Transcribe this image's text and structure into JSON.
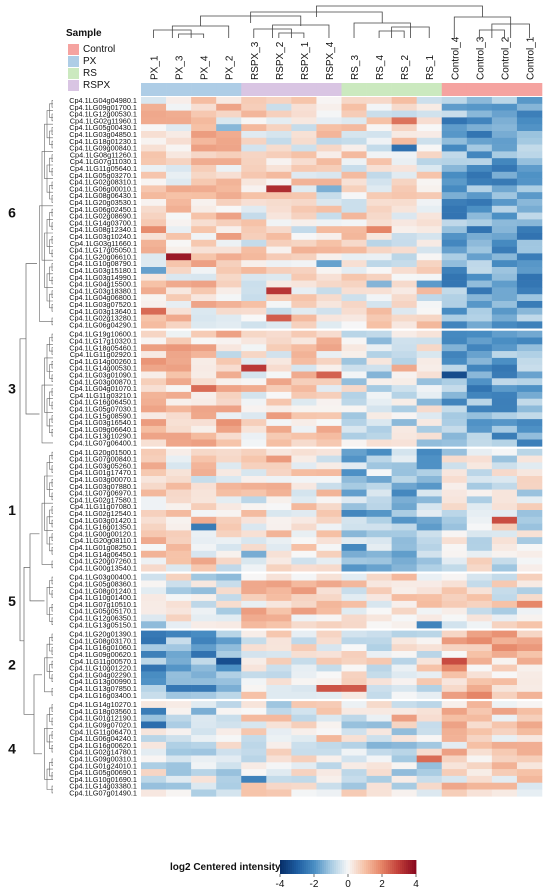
{
  "colors": {
    "Control": "#f5a3a0",
    "PX": "#aecde6",
    "RS": "#cbe9bf",
    "RSPX": "#d9c5e3"
  },
  "chart_data": {
    "type": "heatmap",
    "title": "",
    "samples": [
      "PX_1",
      "PX_3",
      "PX_4",
      "PX_2",
      "RSPX_3",
      "RSPX_2",
      "RSPX_1",
      "RSPX_4",
      "RS_3",
      "RS_4",
      "RS_2",
      "RS_1",
      "Control_4",
      "Control_3",
      "Control_2",
      "Control_1"
    ],
    "sample_groups": [
      "PX",
      "PX",
      "PX",
      "PX",
      "RSPX",
      "RSPX",
      "RSPX",
      "RSPX",
      "RS",
      "RS",
      "RS",
      "RS",
      "Control",
      "Control",
      "Control",
      "Control"
    ],
    "legend": {
      "title": "Sample",
      "entries": [
        "Control",
        "PX",
        "RS",
        "RSPX"
      ]
    },
    "colorbar": {
      "title": "log2 Centered intensity",
      "range": [
        -4,
        4
      ],
      "ticks": [
        -4,
        -2,
        0,
        2,
        4
      ],
      "low_color": "#08306b",
      "mid_color": "#f7f7f7",
      "high_color": "#8b0a1f"
    },
    "clusters": [
      {
        "label": "6",
        "genes": [
          "Cp4.1LG04g04980.1",
          "Cp4.1LG09g01700.1",
          "Cp4.1LG12g00530.1",
          "Cp4.1LG02g11960.1",
          "Cp4.1LG05g00430.1",
          "Cp4.1LG03g04850.1",
          "Cp4.1LG18g01230.1",
          "Cp4.1LG09g00840.1",
          "Cp4.1LG08g11260.1",
          "Cp4.1LG07g11030.1",
          "Cp4.1LG11g05640.1",
          "Cp4.1LG05g03270.1",
          "Cp4.1LG02g08310.1",
          "Cp4.1LG06g00010.1",
          "Cp4.1LG08g06430.1",
          "Cp4.1LG20g03530.1",
          "Cp4.1LG06g02450.1",
          "Cp4.1LG02g08690.1",
          "Cp4.1LG14g03700.1",
          "Cp4.1LG08g12340.1",
          "Cp4.1LG03g10240.1",
          "Cp4.1LG03g11660.1",
          "Cp4.1LG17g05050.1",
          "Cp4.1LG20g06610.1",
          "Cp4.1LG10g08790.1",
          "Cp4.1LG03g15180.1",
          "Cp4.1LG03g14990.1",
          "Cp4.1LG04g15500.1",
          "Cp4.1LG03g18380.1",
          "Cp4.1LG04g06800.1",
          "Cp4.1LG03g07520.1",
          "Cp4.1LG03g13640.1",
          "Cp4.1LG02g13280.1",
          "Cp4.1LG06g04290.1"
        ]
      },
      {
        "label": "3",
        "genes": [
          "Cp4.1LG19g10600.1",
          "Cp4.1LG17g10320.1",
          "Cp4.1LG18g05460.1",
          "Cp4.1LG11g02920.1",
          "Cp4.1LG14g00260.1",
          "Cp4.1LG14g00530.1",
          "Cp4.1LG03g01090.1",
          "Cp4.1LG03g00870.1",
          "Cp4.1LG04g01070.1",
          "Cp4.1LG11g03210.1",
          "Cp4.1LG16g06450.1",
          "Cp4.1LG05g07030.1",
          "Cp4.1LG15g08590.1",
          "Cp4.1LG03g16540.1",
          "Cp4.1LG09g06640.1",
          "Cp4.1LG13g10290.1",
          "Cp4.1LG07g06400.1"
        ]
      },
      {
        "label": "1",
        "genes": [
          "Cp4.1LG20g01500.1",
          "Cp4.1LG07g00840.1",
          "Cp4.1LG03g05260.1",
          "Cp4.1LG01g17470.1",
          "Cp4.1LG03g00070.1",
          "Cp4.1LG03g07880.1",
          "Cp4.1LG07g06970.1",
          "Cp4.1LG02g17580.1",
          "Cp4.1LG11g07080.1",
          "Cp4.1LG02g12540.1",
          "Cp4.1LG03g01420.1",
          "Cp4.1LG16g01350.1",
          "Cp4.1LG00g00120.1",
          "Cp4.1LG20g08110.1",
          "Cp4.1LG01g08250.1",
          "Cp4.1LG14g06450.1",
          "Cp4.1LG20g07260.1",
          "Cp4.1LG00g13540.1"
        ]
      },
      {
        "label": "5",
        "genes": [
          "Cp4.1LG03g00400.1",
          "Cp4.1LG05g08360.1",
          "Cp4.1LG08g01240.1",
          "Cp4.1LG10g01400.1",
          "Cp4.1LG07g10510.1",
          "Cp4.1LG05g05170.1",
          "Cp4.1LG12g06350.1",
          "Cp4.1LG13g05150.1"
        ]
      },
      {
        "label": "2",
        "genes": [
          "Cp4.1LG20g01390.1",
          "Cp4.1LG08g03170.1",
          "Cp4.1LG16g01060.1",
          "Cp4.1LG09g00620.1",
          "Cp4.1LG11g00570.1",
          "Cp4.1LG10g01220.1",
          "Cp4.1LG04g02290.1",
          "Cp4.1LG13g00990.1",
          "Cp4.1LG13g07850.1",
          "Cp4.1LG16g03400.1"
        ]
      },
      {
        "label": "4",
        "genes": [
          "Cp4.1LG14g10270.1",
          "Cp4.1LG18g03560.1",
          "Cp4.1LG01g12190.1",
          "Cp4.1LG09g07020.1",
          "Cp4.1LG11g06470.1",
          "Cp4.1LG06g04240.1",
          "Cp4.1LG16g00620.1",
          "Cp4.1LG02g14780.1",
          "Cp4.1LG09g00310.1",
          "Cp4.1LG01g24010.1",
          "Cp4.1LG05g00690.1",
          "Cp4.1LG10g01690.1",
          "Cp4.1LG14g03380.1",
          "Cp4.1LG07g01490.1"
        ]
      }
    ]
  }
}
